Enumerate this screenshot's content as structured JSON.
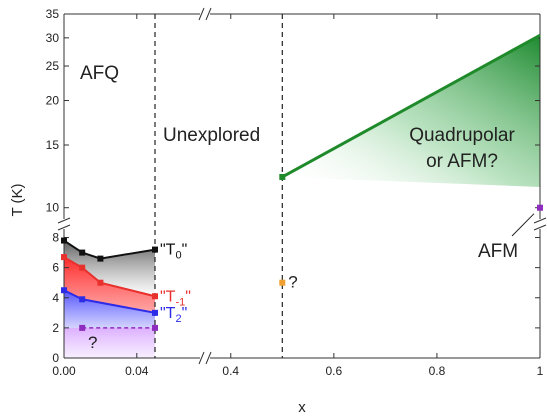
{
  "chart_data": {
    "type": "line",
    "xlabel": "x",
    "ylabel": "T (K)",
    "x_segments": [
      {
        "range": [
          0.0,
          0.05
        ],
        "ticks": [
          0.0,
          0.04
        ],
        "tick_labels": [
          "0.00",
          "0.04"
        ]
      },
      {
        "range": [
          0.35,
          1.0
        ],
        "ticks": [
          0.4,
          0.6,
          0.8,
          1.0
        ],
        "tick_labels": [
          "0.4",
          "0.6",
          "0.8",
          "1"
        ]
      }
    ],
    "y_segments": [
      {
        "range": [
          0,
          8.5
        ],
        "ticks": [
          0,
          2,
          4,
          6,
          8
        ],
        "tick_labels": [
          "0",
          "2",
          "4",
          "6",
          "8"
        ],
        "scale": "linear"
      },
      {
        "range": [
          9,
          35
        ],
        "ticks": [
          10,
          15,
          20,
          25,
          30,
          35
        ],
        "tick_labels": [
          "10",
          "15",
          "20",
          "25",
          "30",
          "35"
        ],
        "scale": "log"
      }
    ],
    "series": [
      {
        "name": "\"T0\"",
        "label_main": "\"T",
        "label_sub": "0",
        "color": "#111111",
        "x": [
          0.0,
          0.01,
          0.02,
          0.05
        ],
        "y": [
          7.8,
          7.0,
          6.6,
          7.2
        ]
      },
      {
        "name": "\"T-1\"",
        "label_main": "\"T",
        "label_sub": "-1",
        "color": "#e8302c",
        "x": [
          0.0,
          0.01,
          0.02,
          0.05
        ],
        "y": [
          6.7,
          6.0,
          5.0,
          4.1
        ]
      },
      {
        "name": "\"T2\"",
        "label_main": "\"T",
        "label_sub": "2",
        "color": "#2c2ce8",
        "x": [
          0.0,
          0.01,
          0.05
        ],
        "y": [
          4.5,
          3.9,
          3.0
        ]
      },
      {
        "name": "T2 dashed",
        "color": "#8e2cc0",
        "x": [
          0.01,
          0.05
        ],
        "y": [
          2.0,
          2.0
        ]
      }
    ],
    "green_line": {
      "x": [
        0.5,
        1.0
      ],
      "y": [
        12.2,
        30.5
      ],
      "color": "#1f8a2a"
    },
    "points": [
      {
        "x": 0.5,
        "y": 5.0,
        "color": "#f0a030",
        "label": "?"
      },
      {
        "x": 1.0,
        "y": 10.0,
        "color": "#8e2cc0",
        "label": "AFM"
      }
    ],
    "vertical_dashed": [
      0.05,
      0.5
    ],
    "annotations": {
      "afq": "AFQ",
      "unexplored": "Unexplored",
      "quadrupolar_line1": "Quadrupolar",
      "quadrupolar_line2": "or AFM?",
      "afm": "AFM",
      "question_purple": "?",
      "question_orange": "?"
    }
  }
}
